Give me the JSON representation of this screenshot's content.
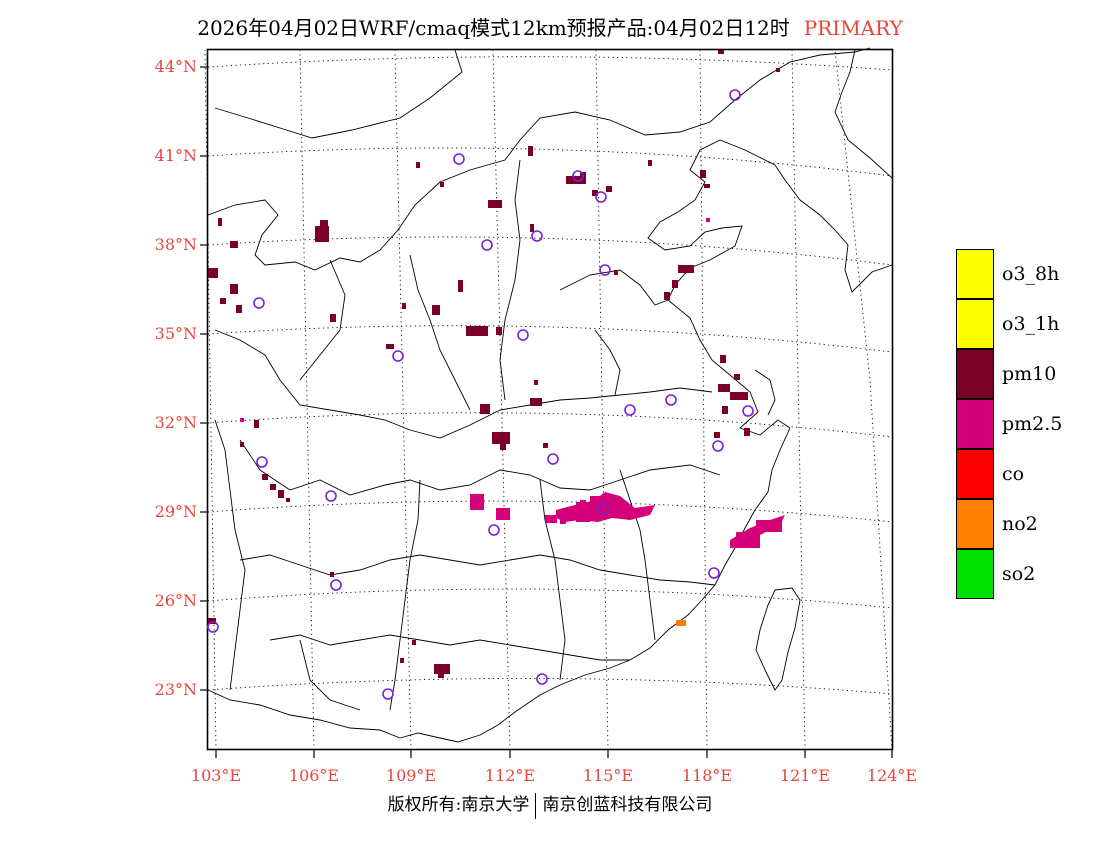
{
  "title": {
    "text": "2026年04月02日WRF/cmaq模式12km预报产品:04月02日12时",
    "tag": "PRIMARY"
  },
  "map": {
    "latitude_labels": [
      "44°N",
      "41°N",
      "38°N",
      "35°N",
      "32°N",
      "29°N",
      "26°N",
      "23°N"
    ],
    "longitude_labels": [
      "103°E",
      "106°E",
      "109°E",
      "112°E",
      "115°E",
      "118°E",
      "121°E",
      "124°E"
    ]
  },
  "legend": {
    "items": [
      {
        "label": "o3_8h",
        "color": "#ffff00"
      },
      {
        "label": "o3_1h",
        "color": "#ffff00"
      },
      {
        "label": "pm10",
        "color": "#7a0028"
      },
      {
        "label": "pm2.5",
        "color": "#d4007a"
      },
      {
        "label": "co",
        "color": "#ff0000"
      },
      {
        "label": "no2",
        "color": "#ff7f00"
      },
      {
        "label": "so2",
        "color": "#00e000"
      }
    ]
  },
  "footer": {
    "left": "版权所有:南京大学",
    "right": "南京创蓝科技有限公司"
  },
  "colors": {
    "label_red": "#e8453c",
    "station_circle": "#7a1fd6",
    "pm10": "#7a0028",
    "pm25": "#d4007a"
  }
}
